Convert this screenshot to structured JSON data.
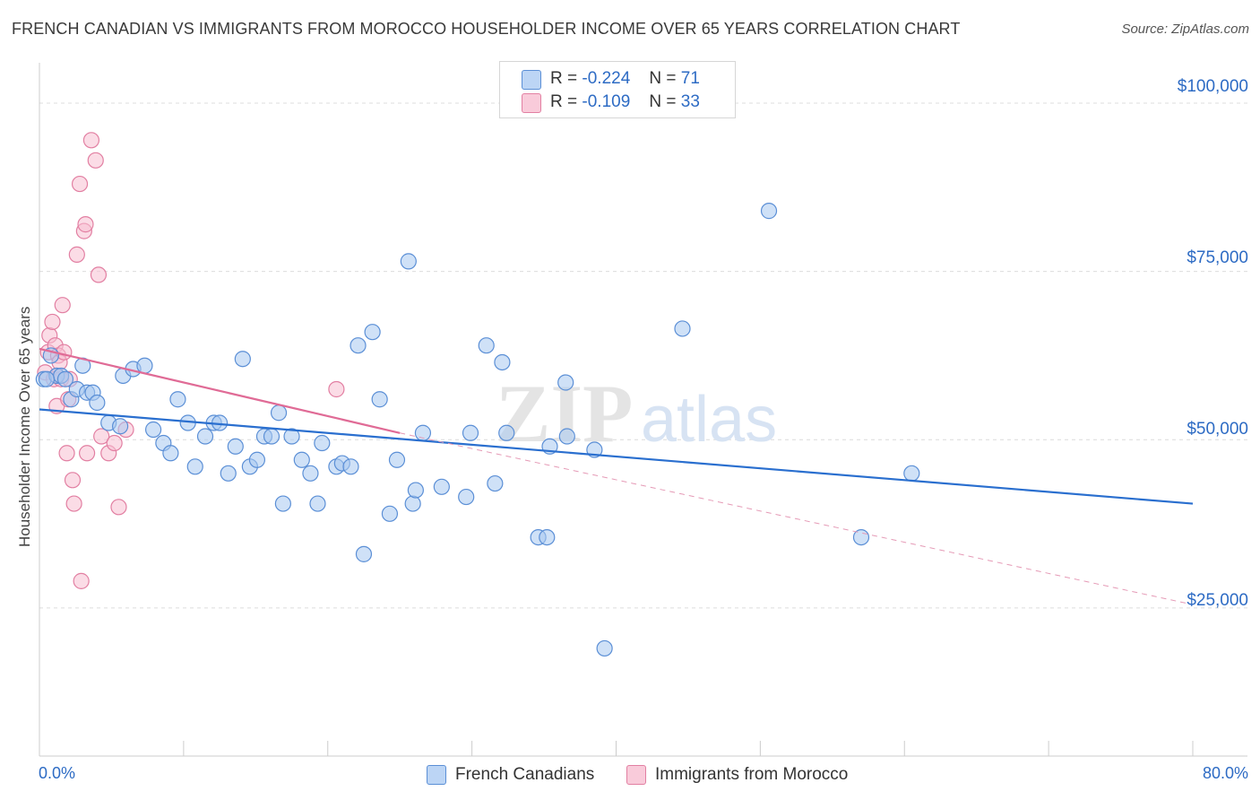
{
  "title": "FRENCH CANADIAN VS IMMIGRANTS FROM MOROCCO HOUSEHOLDER INCOME OVER 65 YEARS CORRELATION CHART",
  "source": "Source: ZipAtlas.com",
  "watermark": {
    "zip": "ZIP",
    "atlas": "atlas"
  },
  "legend": {
    "r_label": "R =",
    "n_label": "N =",
    "series": [
      {
        "r": "-0.224",
        "n": "71"
      },
      {
        "r": "-0.109",
        "n": "33"
      }
    ]
  },
  "chart_data": {
    "type": "scatter",
    "title": "FRENCH CANADIAN VS IMMIGRANTS FROM MOROCCO HOUSEHOLDER INCOME OVER 65 YEARS CORRELATION CHART",
    "xlabel": "",
    "ylabel": "Householder Income Over 65 years",
    "xlim": [
      0,
      80
    ],
    "ylim": [
      3000,
      106000
    ],
    "x_tick_labels": [
      "0.0%",
      "80.0%"
    ],
    "y_ticks": [
      25000,
      50000,
      75000,
      100000
    ],
    "y_tick_labels": [
      "$25,000",
      "$50,000",
      "$75,000",
      "$100,000"
    ],
    "grid": true,
    "legend_position": "top-center",
    "series": [
      {
        "name": "French Canadians",
        "color": "#a8c8f0",
        "edge": "#5b8fd6",
        "trend": {
          "x0": 0,
          "y0": 54500,
          "x1": 80,
          "y1": 40500,
          "color": "#2a6fcf"
        },
        "points": [
          [
            0.3,
            59000
          ],
          [
            0.8,
            62500
          ],
          [
            1.2,
            59500
          ],
          [
            1.5,
            59500
          ],
          [
            1.8,
            59000
          ],
          [
            2.2,
            56000
          ],
          [
            2.6,
            57500
          ],
          [
            3.0,
            61000
          ],
          [
            3.3,
            57000
          ],
          [
            3.7,
            57000
          ],
          [
            4.0,
            55500
          ],
          [
            4.8,
            52500
          ],
          [
            5.6,
            52000
          ],
          [
            5.8,
            59500
          ],
          [
            6.5,
            60500
          ],
          [
            7.3,
            61000
          ],
          [
            7.9,
            51500
          ],
          [
            8.6,
            49500
          ],
          [
            9.1,
            48000
          ],
          [
            9.6,
            56000
          ],
          [
            10.3,
            52500
          ],
          [
            10.8,
            46000
          ],
          [
            11.5,
            50500
          ],
          [
            12.1,
            52500
          ],
          [
            12.5,
            52500
          ],
          [
            13.1,
            45000
          ],
          [
            13.6,
            49000
          ],
          [
            14.1,
            62000
          ],
          [
            14.6,
            46000
          ],
          [
            15.1,
            47000
          ],
          [
            15.6,
            50500
          ],
          [
            16.1,
            50500
          ],
          [
            16.6,
            54000
          ],
          [
            16.9,
            40500
          ],
          [
            17.5,
            50500
          ],
          [
            18.2,
            47000
          ],
          [
            18.8,
            45000
          ],
          [
            19.3,
            40500
          ],
          [
            19.6,
            49500
          ],
          [
            20.6,
            46000
          ],
          [
            21.0,
            46500
          ],
          [
            21.6,
            46000
          ],
          [
            22.1,
            64000
          ],
          [
            22.5,
            33000
          ],
          [
            23.1,
            66000
          ],
          [
            23.6,
            56000
          ],
          [
            24.3,
            39000
          ],
          [
            24.8,
            47000
          ],
          [
            25.6,
            76500
          ],
          [
            25.9,
            40500
          ],
          [
            26.1,
            42500
          ],
          [
            26.6,
            51000
          ],
          [
            27.9,
            43000
          ],
          [
            29.6,
            41500
          ],
          [
            29.9,
            51000
          ],
          [
            31.0,
            64000
          ],
          [
            31.6,
            43500
          ],
          [
            32.1,
            61500
          ],
          [
            32.4,
            51000
          ],
          [
            34.6,
            35500
          ],
          [
            35.2,
            35500
          ],
          [
            35.4,
            49000
          ],
          [
            36.5,
            58500
          ],
          [
            36.6,
            50500
          ],
          [
            38.5,
            48500
          ],
          [
            39.2,
            19000
          ],
          [
            44.6,
            66500
          ],
          [
            50.6,
            84000
          ],
          [
            57.0,
            35500
          ],
          [
            60.5,
            45000
          ],
          [
            0.5,
            59000
          ]
        ]
      },
      {
        "name": "Immigrants from Morocco",
        "color": "#f8c0d2",
        "edge": "#e27fa2",
        "trend": {
          "x0": 0,
          "y0": 63500,
          "x1": 25,
          "y1": 51000,
          "color": "#e06b96"
        },
        "trend_ext": {
          "x0": 25,
          "y0": 51000,
          "x1": 80,
          "y1": 25500,
          "color": "#e59ab6"
        },
        "points": [
          [
            0.4,
            60000
          ],
          [
            0.6,
            63000
          ],
          [
            0.7,
            65500
          ],
          [
            0.9,
            67500
          ],
          [
            1.0,
            59000
          ],
          [
            1.1,
            64000
          ],
          [
            1.2,
            55000
          ],
          [
            1.3,
            62500
          ],
          [
            1.4,
            61500
          ],
          [
            1.5,
            59000
          ],
          [
            1.6,
            70000
          ],
          [
            1.7,
            63000
          ],
          [
            1.9,
            48000
          ],
          [
            2.0,
            56000
          ],
          [
            2.1,
            59000
          ],
          [
            2.3,
            44000
          ],
          [
            2.4,
            40500
          ],
          [
            2.6,
            77500
          ],
          [
            2.8,
            88000
          ],
          [
            2.9,
            29000
          ],
          [
            3.1,
            81000
          ],
          [
            3.2,
            82000
          ],
          [
            3.3,
            48000
          ],
          [
            3.6,
            94500
          ],
          [
            3.9,
            91500
          ],
          [
            4.1,
            74500
          ],
          [
            4.3,
            50500
          ],
          [
            4.8,
            48000
          ],
          [
            5.2,
            49500
          ],
          [
            5.5,
            40000
          ],
          [
            6.0,
            51500
          ],
          [
            20.6,
            57500
          ],
          [
            1.2,
            59500
          ]
        ]
      }
    ]
  }
}
